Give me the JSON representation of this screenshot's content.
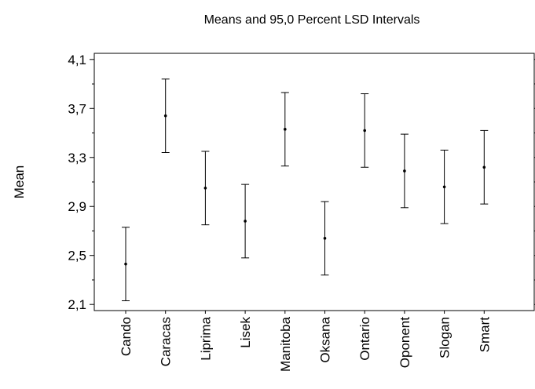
{
  "chart_data": {
    "type": "errorbar",
    "title": "Means and 95,0 Percent LSD Intervals",
    "xlabel": "",
    "ylabel": "Mean",
    "categories": [
      "Cando",
      "Caracas",
      "Liprima",
      "Lisek",
      "Manitoba",
      "Oksana",
      "Ontario",
      "Oponent",
      "Slogan",
      "Smart"
    ],
    "series": [
      {
        "mean": [
          2.43,
          3.64,
          3.05,
          2.78,
          3.53,
          2.64,
          3.52,
          3.19,
          3.06,
          3.22
        ],
        "lower": [
          2.13,
          3.34,
          2.75,
          2.48,
          3.23,
          2.34,
          3.22,
          2.89,
          2.76,
          2.92
        ],
        "upper": [
          2.73,
          3.94,
          3.35,
          3.08,
          3.83,
          2.94,
          3.82,
          3.49,
          3.36,
          3.52
        ]
      }
    ],
    "ylim": [
      2.05,
      4.15
    ],
    "yticks": [
      "2,1",
      "2,5",
      "2,9",
      "3,3",
      "3,7",
      "4,1"
    ],
    "ytick_values": [
      2.1,
      2.5,
      2.9,
      3.3,
      3.7,
      4.1
    ],
    "grid": false,
    "colors": {
      "line": "#000000",
      "background": "#ffffff"
    }
  }
}
